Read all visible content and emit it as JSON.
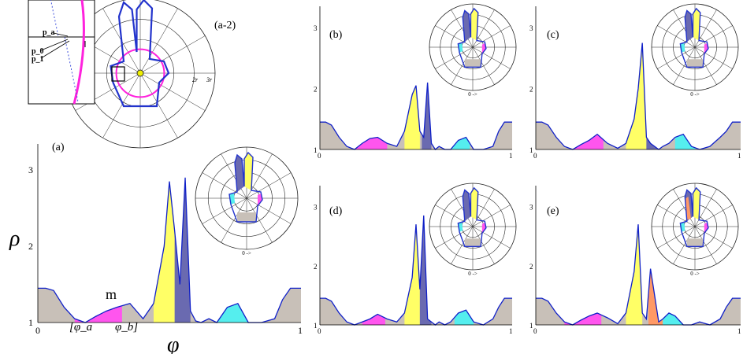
{
  "figure_labels": {
    "a": "(a)",
    "a2": "(a-2)",
    "b": "(b)",
    "c": "(c)",
    "d": "(d)",
    "e": "(e)"
  },
  "axis": {
    "ylabel": "ρ",
    "xlabel": "φ",
    "y_ticks": [
      "1",
      "2",
      "3"
    ],
    "x_ticks": [
      "0",
      "1"
    ]
  },
  "annotations": {
    "m": "m",
    "phi_a": "[φ_a",
    "phi_b": "φ_b]",
    "p_a": "p_a",
    "p_0": "p_0",
    "p_1": "p_1",
    "two_r": "2r",
    "three_r": "3r",
    "zero_arrow": "0 ->"
  },
  "colors": {
    "curve": "#1020c8",
    "base_fill": "#c8c0b8",
    "magenta": "#ff55ee",
    "yellow": "#ffff66",
    "navy": "#6a6ab0",
    "cyan": "#55eeee",
    "orange": "#ff9966",
    "ring": "#ff22dd",
    "hand": "#2233cc"
  },
  "chart_data": {
    "type": "area",
    "title": "",
    "xlabel": "φ",
    "ylabel": "ρ",
    "xlim": [
      0,
      1
    ],
    "ylim": [
      1,
      3.3
    ],
    "x": [
      0,
      0.03,
      0.06,
      0.1,
      0.14,
      0.18,
      0.22,
      0.26,
      0.3,
      0.35,
      0.4,
      0.44,
      0.48,
      0.5,
      0.52,
      0.54,
      0.56,
      0.58,
      0.6,
      0.62,
      0.65,
      0.68,
      0.72,
      0.76,
      0.8,
      0.85,
      0.9,
      0.93,
      0.96,
      1
    ],
    "series": [
      {
        "panel": "a",
        "values": [
          1.45,
          1.45,
          1.42,
          1.2,
          1.05,
          1.0,
          1.08,
          1.15,
          1.2,
          1.25,
          1.05,
          1.25,
          2.0,
          2.85,
          2.2,
          1.5,
          2.9,
          1.15,
          1.02,
          1.0,
          1.05,
          1.0,
          1.2,
          1.25,
          1.0,
          1.0,
          1.05,
          1.3,
          1.45,
          1.45
        ],
        "regions": [
          {
            "from": 0.14,
            "to": 0.32,
            "color": "magenta"
          },
          {
            "from": 0.44,
            "to": 0.52,
            "color": "yellow"
          },
          {
            "from": 0.52,
            "to": 0.58,
            "color": "navy"
          },
          {
            "from": 0.68,
            "to": 0.8,
            "color": "cyan"
          }
        ]
      },
      {
        "panel": "b",
        "values": [
          1.45,
          1.45,
          1.4,
          1.2,
          1.05,
          1.0,
          1.1,
          1.18,
          1.2,
          1.1,
          1.05,
          1.3,
          1.9,
          2.05,
          1.3,
          1.2,
          2.1,
          1.1,
          1.0,
          1.05,
          1.0,
          1.0,
          1.15,
          1.2,
          1.0,
          1.0,
          1.05,
          1.3,
          1.45,
          1.45
        ],
        "regions": [
          {
            "from": 0.18,
            "to": 0.35,
            "color": "magenta"
          },
          {
            "from": 0.44,
            "to": 0.52,
            "color": "yellow"
          },
          {
            "from": 0.53,
            "to": 0.58,
            "color": "navy"
          },
          {
            "from": 0.68,
            "to": 0.78,
            "color": "cyan"
          }
        ]
      },
      {
        "panel": "c",
        "values": [
          1.45,
          1.45,
          1.4,
          1.2,
          1.05,
          1.0,
          1.08,
          1.15,
          1.25,
          1.1,
          1.02,
          1.1,
          1.5,
          2.0,
          2.75,
          1.2,
          1.1,
          1.05,
          1.0,
          1.05,
          1.1,
          1.2,
          1.25,
          1.05,
          1.0,
          1.05,
          1.2,
          1.3,
          1.45,
          1.45
        ],
        "regions": [
          {
            "from": 0.18,
            "to": 0.33,
            "color": "magenta"
          },
          {
            "from": 0.44,
            "to": 0.54,
            "color": "yellow"
          },
          {
            "from": 0.54,
            "to": 0.6,
            "color": "navy"
          },
          {
            "from": 0.68,
            "to": 0.78,
            "color": "cyan"
          }
        ]
      },
      {
        "panel": "d",
        "values": [
          1.45,
          1.45,
          1.4,
          1.2,
          1.05,
          1.0,
          1.05,
          1.1,
          1.18,
          1.1,
          1.05,
          1.2,
          1.8,
          2.7,
          1.6,
          2.85,
          1.1,
          1.05,
          1.0,
          1.05,
          1.0,
          1.05,
          1.2,
          1.25,
          1.05,
          1.0,
          1.1,
          1.3,
          1.45,
          1.45
        ],
        "regions": [
          {
            "from": 0.22,
            "to": 0.34,
            "color": "magenta"
          },
          {
            "from": 0.44,
            "to": 0.52,
            "color": "yellow"
          },
          {
            "from": 0.52,
            "to": 0.58,
            "color": "navy"
          },
          {
            "from": 0.7,
            "to": 0.8,
            "color": "cyan"
          }
        ]
      },
      {
        "panel": "e",
        "values": [
          1.45,
          1.45,
          1.4,
          1.2,
          1.05,
          1.0,
          1.08,
          1.15,
          1.2,
          1.12,
          1.02,
          1.2,
          1.9,
          2.7,
          1.2,
          1.1,
          1.95,
          1.5,
          1.05,
          1.1,
          1.2,
          1.15,
          1.0,
          1.0,
          1.05,
          1.0,
          1.1,
          1.3,
          1.45,
          1.45
        ],
        "regions": [
          {
            "from": 0.14,
            "to": 0.32,
            "color": "magenta"
          },
          {
            "from": 0.44,
            "to": 0.52,
            "color": "yellow"
          },
          {
            "from": 0.55,
            "to": 0.62,
            "color": "orange"
          },
          {
            "from": 0.62,
            "to": 0.72,
            "color": "cyan"
          }
        ]
      }
    ]
  }
}
